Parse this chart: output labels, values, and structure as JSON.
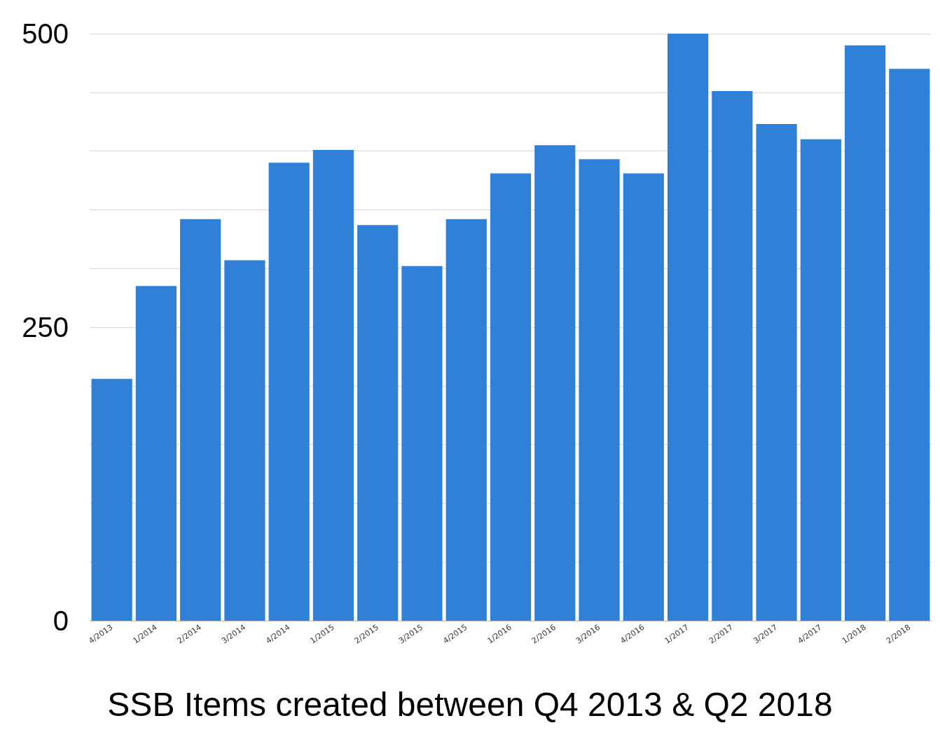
{
  "chart_data": {
    "type": "bar",
    "title": "SSB Items created between Q4 2013 & Q2 2018",
    "categories": [
      "4/2013",
      "1/2014",
      "2/2014",
      "3/2014",
      "4/2014",
      "1/2015",
      "2/2015",
      "3/2015",
      "4/2015",
      "1/2016",
      "2/2016",
      "3/2016",
      "4/2016",
      "1/2017",
      "2/2017",
      "3/2017",
      "4/2017",
      "1/2018",
      "2/2018"
    ],
    "values": [
      206,
      285,
      342,
      307,
      390,
      401,
      337,
      302,
      342,
      381,
      405,
      393,
      381,
      500,
      451,
      423,
      410,
      490,
      470
    ],
    "color": "#3080d8",
    "ylim": [
      0,
      500
    ],
    "yticks": [
      0,
      {
        "value": 50,
        "label": null
      },
      {
        "value": 100,
        "label": null
      },
      {
        "value": 150,
        "label": null
      },
      {
        "value": 200,
        "label": null
      },
      250,
      {
        "value": 300,
        "label": null
      },
      {
        "value": 350,
        "label": null
      },
      {
        "value": 400,
        "label": null
      },
      {
        "value": 450,
        "label": null
      },
      500
    ],
    "grid": "y"
  }
}
